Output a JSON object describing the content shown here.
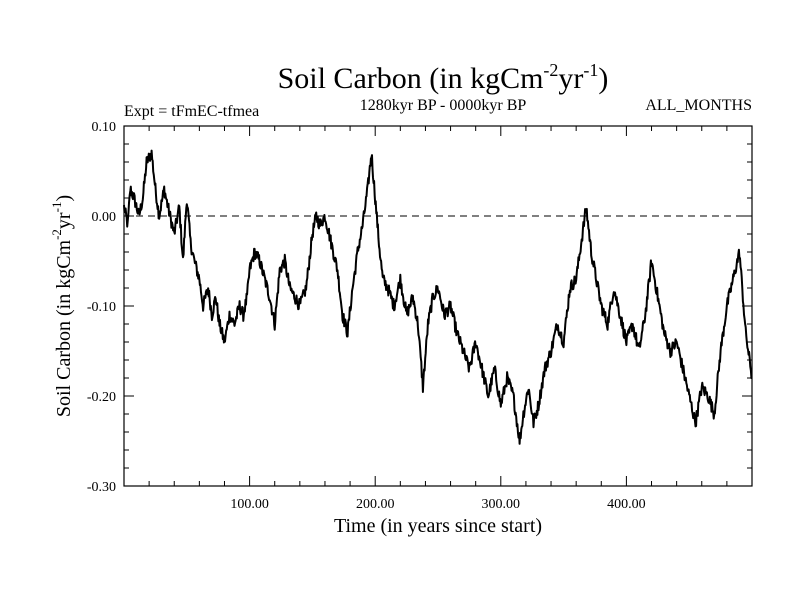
{
  "chart_data": {
    "type": "line",
    "title": {
      "main": "Soil Carbon (in kgCm",
      "sup1": "-2",
      "mid": "yr",
      "sup2": "-1",
      "end": ")"
    },
    "subtitle_left": "Expt = tFmEC-tfmea",
    "subtitle_center": "1280kyr BP - 0000kyr BP",
    "subtitle_right": "ALL_MONTHS",
    "xlabel": "Time (in years since start)",
    "ylabel": {
      "main": "Soil Carbon (in kgCm",
      "sup1": "-2",
      "mid": "yr",
      "sup2": "-1",
      "end": ")"
    },
    "xlim": [
      0,
      500
    ],
    "ylim": [
      -0.3,
      0.1
    ],
    "x_ticks": [
      100,
      200,
      300,
      400
    ],
    "x_tick_labels": [
      "100.00",
      "200.00",
      "300.00",
      "400.00"
    ],
    "y_ticks": [
      0.1,
      0.0,
      -0.1,
      -0.2,
      -0.3
    ],
    "y_tick_labels": [
      "0.10",
      "0.00",
      "-0.10",
      "-0.20",
      "-0.30"
    ],
    "reference_line": 0.0,
    "series": [
      {
        "name": "soil_carbon",
        "x": [
          0,
          3,
          5,
          8,
          12,
          15,
          18,
          22,
          25,
          28,
          32,
          35,
          40,
          44,
          47,
          50,
          53,
          56,
          60,
          63,
          67,
          70,
          73,
          76,
          80,
          84,
          88,
          92,
          95,
          98,
          100,
          104,
          108,
          112,
          116,
          120,
          124,
          128,
          132,
          136,
          140,
          145,
          150,
          153,
          156,
          160,
          165,
          170,
          174,
          178,
          182,
          186,
          190,
          194,
          197,
          200,
          203,
          206,
          210,
          215,
          220,
          225,
          230,
          234,
          238,
          242,
          246,
          250,
          255,
          260,
          265,
          270,
          275,
          280,
          285,
          290,
          295,
          300,
          305,
          310,
          315,
          318,
          322,
          326,
          330,
          335,
          340,
          345,
          350,
          355,
          360,
          364,
          368,
          372,
          376,
          380,
          385,
          390,
          395,
          400,
          405,
          410,
          415,
          420,
          425,
          430,
          435,
          440,
          445,
          450,
          455,
          460,
          465,
          470,
          475,
          480,
          485,
          490,
          495,
          500
        ],
        "y": [
          0.01,
          -0.01,
          0.03,
          0.02,
          0.0,
          0.02,
          0.06,
          0.07,
          0.03,
          0.0,
          0.03,
          0.01,
          -0.02,
          0.01,
          -0.05,
          0.02,
          -0.03,
          -0.05,
          -0.07,
          -0.1,
          -0.08,
          -0.11,
          -0.09,
          -0.12,
          -0.14,
          -0.11,
          -0.12,
          -0.1,
          -0.11,
          -0.09,
          -0.06,
          -0.04,
          -0.05,
          -0.07,
          -0.09,
          -0.12,
          -0.06,
          -0.05,
          -0.08,
          -0.09,
          -0.1,
          -0.08,
          -0.02,
          0.0,
          -0.01,
          0.0,
          -0.03,
          -0.06,
          -0.11,
          -0.13,
          -0.08,
          -0.04,
          -0.01,
          0.03,
          0.07,
          0.02,
          -0.03,
          -0.07,
          -0.08,
          -0.1,
          -0.07,
          -0.11,
          -0.09,
          -0.12,
          -0.19,
          -0.12,
          -0.09,
          -0.08,
          -0.11,
          -0.1,
          -0.13,
          -0.15,
          -0.17,
          -0.14,
          -0.17,
          -0.2,
          -0.17,
          -0.21,
          -0.18,
          -0.2,
          -0.25,
          -0.22,
          -0.19,
          -0.23,
          -0.21,
          -0.17,
          -0.15,
          -0.12,
          -0.14,
          -0.08,
          -0.07,
          -0.03,
          0.01,
          -0.04,
          -0.07,
          -0.1,
          -0.12,
          -0.08,
          -0.11,
          -0.14,
          -0.12,
          -0.15,
          -0.11,
          -0.05,
          -0.09,
          -0.13,
          -0.15,
          -0.14,
          -0.17,
          -0.2,
          -0.23,
          -0.19,
          -0.2,
          -0.22,
          -0.15,
          -0.1,
          -0.07,
          -0.04,
          -0.13,
          -0.18
        ]
      }
    ]
  }
}
